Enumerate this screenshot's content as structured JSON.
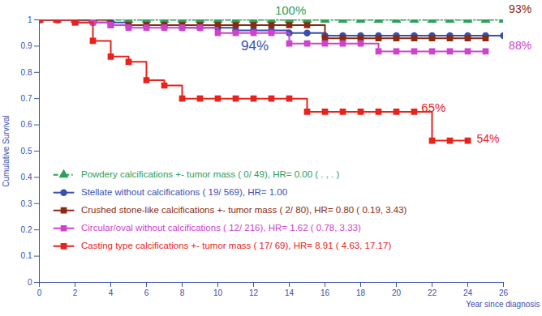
{
  "chart_data": {
    "type": "line",
    "x_label": "Year since diagnosis",
    "y_label": "Cumulative Survival",
    "xlim": [
      0,
      26
    ],
    "xticks": [
      0,
      2,
      4,
      6,
      8,
      10,
      12,
      14,
      16,
      18,
      20,
      22,
      24,
      26
    ],
    "ylim": [
      0,
      1
    ],
    "yticks": [
      0,
      0.1,
      0.2,
      0.3,
      0.4,
      0.5,
      0.6,
      0.7,
      0.8,
      0.9,
      1
    ],
    "grid": false,
    "legend": "lower left",
    "series": [
      {
        "name": "Powdery calcifications +- tumor mass ( 0/ 49), HR= 0.00 ( . , . )",
        "color": "#2ca05a",
        "marker": "triangle",
        "line_style": "dashdot",
        "x": [
          0,
          1,
          2,
          3,
          4,
          5,
          6,
          7,
          8,
          9,
          10,
          11,
          12,
          13,
          14,
          15,
          16,
          17,
          18,
          19,
          20,
          21,
          22,
          23,
          24,
          25,
          26
        ],
        "values": [
          1,
          1,
          1,
          1,
          1,
          1,
          1,
          1,
          1,
          1,
          1,
          1,
          1,
          1,
          1,
          1,
          1,
          1,
          1,
          1,
          1,
          1,
          1,
          1,
          1,
          1,
          1
        ]
      },
      {
        "name": "Stellate without calcifications ( 19/ 569), HR= 1.00",
        "color": "#3a4fb0",
        "marker": "circle",
        "line_style": "solid",
        "x": [
          0,
          1,
          2,
          3,
          4,
          5,
          6,
          7,
          8,
          9,
          10,
          11,
          12,
          13,
          14,
          15,
          16,
          17,
          18,
          19,
          20,
          21,
          22,
          23,
          24,
          25,
          26
        ],
        "values": [
          1,
          1,
          1,
          0.99,
          0.99,
          0.98,
          0.98,
          0.98,
          0.97,
          0.97,
          0.97,
          0.96,
          0.96,
          0.96,
          0.95,
          0.95,
          0.94,
          0.94,
          0.94,
          0.94,
          0.94,
          0.94,
          0.94,
          0.94,
          0.94,
          0.94,
          0.94
        ]
      },
      {
        "name": "Crushed stone-like calcifications +- tumor mass ( 2/ 80), HR= 0.80 ( 0.19, 3.43)",
        "color": "#8b2a10",
        "marker": "square",
        "line_style": "solid",
        "x": [
          0,
          1,
          2,
          3,
          4,
          5,
          6,
          7,
          8,
          9,
          10,
          11,
          12,
          13,
          14,
          15,
          16,
          17,
          18,
          19,
          20,
          21,
          22,
          23,
          24,
          25
        ],
        "values": [
          1,
          1,
          1,
          1,
          0.98,
          0.98,
          0.98,
          0.98,
          0.98,
          0.98,
          0.98,
          0.98,
          0.98,
          0.98,
          0.98,
          0.98,
          0.93,
          0.93,
          0.93,
          0.93,
          0.93,
          0.93,
          0.93,
          0.93,
          0.93,
          0.93
        ]
      },
      {
        "name": "Circular/oval without calcifications ( 12/ 216), HR= 1.62 ( 0.78, 3.33)",
        "color": "#cc44cc",
        "marker": "square",
        "line_style": "solid",
        "x": [
          0,
          1,
          2,
          3,
          4,
          5,
          6,
          7,
          8,
          9,
          10,
          11,
          12,
          13,
          14,
          15,
          16,
          17,
          18,
          19,
          20,
          21,
          22,
          23,
          24,
          25
        ],
        "values": [
          1,
          1,
          0.99,
          0.99,
          0.98,
          0.97,
          0.97,
          0.97,
          0.97,
          0.97,
          0.95,
          0.95,
          0.95,
          0.95,
          0.91,
          0.91,
          0.91,
          0.91,
          0.91,
          0.88,
          0.88,
          0.88,
          0.88,
          0.88,
          0.88,
          0.88
        ]
      },
      {
        "name": "Casting type calcifications +- tumor mass ( 17/ 69), HR= 8.91 ( 4.63, 17.17)",
        "color": "#e8221c",
        "marker": "square",
        "line_style": "solid",
        "x": [
          0,
          1,
          2,
          3,
          4,
          5,
          6,
          7,
          8,
          9,
          10,
          11,
          12,
          13,
          14,
          15,
          16,
          17,
          18,
          19,
          20,
          21,
          22,
          23,
          24
        ],
        "values": [
          1,
          1,
          0.99,
          0.92,
          0.86,
          0.84,
          0.77,
          0.75,
          0.7,
          0.7,
          0.7,
          0.7,
          0.7,
          0.7,
          0.7,
          0.65,
          0.65,
          0.65,
          0.65,
          0.65,
          0.65,
          0.65,
          0.54,
          0.54,
          0.54
        ]
      }
    ],
    "annotations": [
      {
        "text": "100%",
        "color": "#2ca05a"
      },
      {
        "text": "94%",
        "color": "#3a4fb0"
      },
      {
        "text": "93%",
        "color": "#8b2a10"
      },
      {
        "text": "88%",
        "color": "#cc44cc"
      },
      {
        "text": "65%",
        "color": "#e8221c"
      },
      {
        "text": "54%",
        "color": "#e8221c"
      }
    ]
  }
}
